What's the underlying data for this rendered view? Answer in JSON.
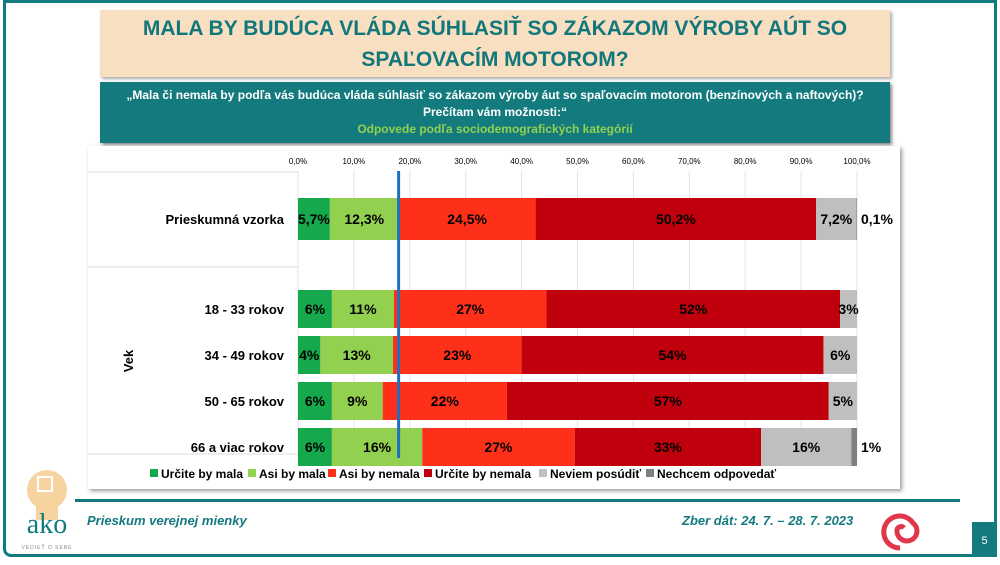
{
  "title": "MALA BY BUDÚCA VLÁDA SÚHLASIŤ SO ZÁKAZOM VÝROBY AÚT SO SPAĽOVACÍM MOTOROM?",
  "question": {
    "line1": "„Mala či nemala by podľa vás budúca vláda súhlasiť so zákazom výroby áut so spaľovacím motorom (benzínových a naftových)?",
    "line2": "Prečítam vám možnosti:“",
    "line3": "Odpovede podľa sociodemografických kategórií"
  },
  "footer": {
    "left": "Prieskum verejnej mienky",
    "right": "Zber dát: 24. 7. – 28. 7. 2023",
    "page": "5",
    "logo_text": "ako",
    "logo_tagline": "VEDIEŤ O SEBE"
  },
  "chart_data": {
    "type": "bar",
    "orientation": "horizontal",
    "stacked": true,
    "xlim": [
      0,
      100
    ],
    "ticks": [
      "0,0%",
      "10,0%",
      "20,0%",
      "30,0%",
      "40,0%",
      "50,0%",
      "60,0%",
      "70,0%",
      "80,0%",
      "90,0%",
      "100,0%"
    ],
    "group_label": "Vek",
    "reference_line": 18,
    "legend_position": "bottom",
    "series": [
      {
        "name": "Určite by mala",
        "color": "#16a84c"
      },
      {
        "name": "Asi by mala",
        "color": "#92d050"
      },
      {
        "name": "Asi by nemala",
        "color": "#ff3019"
      },
      {
        "name": "Určite by nemala",
        "color": "#c0000c"
      },
      {
        "name": "Neviem posúdiť",
        "color": "#bfbfbf"
      },
      {
        "name": "Nechcem odpovedať",
        "color": "#7f7f7f"
      }
    ],
    "categories": [
      {
        "label": "Prieskumná vzorka",
        "values": [
          5.7,
          12.3,
          24.5,
          50.2,
          7.2,
          0.1
        ],
        "labels": [
          "5,7%",
          "12,3%",
          "24,5%",
          "50,2%",
          "7,2%",
          "0,1%"
        ]
      },
      {
        "label": "18 - 33 rokov",
        "values": [
          6,
          11,
          27,
          52,
          3,
          0
        ],
        "labels": [
          "6%",
          "11%",
          "27%",
          "52%",
          "3%",
          ""
        ]
      },
      {
        "label": "34 - 49 rokov",
        "values": [
          4,
          13,
          23,
          54,
          6,
          0
        ],
        "labels": [
          "4%",
          "13%",
          "23%",
          "54%",
          "6%",
          ""
        ]
      },
      {
        "label": "50 - 65 rokov",
        "values": [
          6,
          9,
          22,
          57,
          5,
          0
        ],
        "labels": [
          "6%",
          "9%",
          "22%",
          "57%",
          "5%",
          ""
        ]
      },
      {
        "label": "66 a viac rokov",
        "values": [
          6,
          16,
          27,
          33,
          16,
          1
        ],
        "labels": [
          "6%",
          "16%",
          "27%",
          "33%",
          "16%",
          "1%"
        ]
      }
    ]
  }
}
